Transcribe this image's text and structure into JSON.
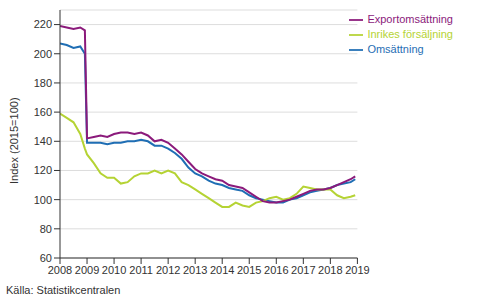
{
  "chart_data": {
    "type": "line",
    "y_label": "Index (2015=100)",
    "source": "Källa: Statistikcentralen",
    "x": [
      2008,
      2008.25,
      2008.5,
      2008.75,
      2008.92,
      2009,
      2009.25,
      2009.5,
      2009.75,
      2010,
      2010.25,
      2010.5,
      2010.75,
      2011,
      2011.25,
      2011.5,
      2011.75,
      2012,
      2012.25,
      2012.5,
      2012.75,
      2013,
      2013.25,
      2013.5,
      2013.75,
      2014,
      2014.25,
      2014.5,
      2014.75,
      2015,
      2015.25,
      2015.5,
      2015.75,
      2016,
      2016.25,
      2016.5,
      2016.75,
      2017,
      2017.25,
      2017.5,
      2017.75,
      2018,
      2018.25,
      2018.5,
      2018.75,
      2018.92
    ],
    "series": [
      {
        "name": "Omsättning",
        "color": "#1f6eb4",
        "values": [
          207,
          206,
          204,
          205,
          200,
          139,
          139,
          139,
          138,
          139,
          139,
          140,
          140,
          141,
          140,
          137,
          137,
          135,
          132,
          128,
          122,
          118,
          116,
          113,
          111,
          110,
          108,
          107,
          106,
          103,
          101,
          100,
          99,
          98,
          98,
          100,
          101,
          103,
          105,
          106,
          107,
          108,
          110,
          111,
          112,
          114
        ]
      },
      {
        "name": "Inrikes försäljning",
        "color": "#b5d334",
        "values": [
          159,
          156,
          153,
          145,
          135,
          131,
          125,
          118,
          115,
          115,
          111,
          112,
          116,
          118,
          118,
          120,
          118,
          120,
          118,
          112,
          110,
          107,
          104,
          101,
          98,
          95,
          95,
          98,
          96,
          95,
          98,
          99,
          101,
          102,
          100,
          101,
          104,
          109,
          108,
          107,
          107,
          107,
          103,
          101,
          102,
          103
        ]
      },
      {
        "name": "Exportomsättning",
        "color": "#8b1a7b",
        "values": [
          219,
          218,
          217,
          218,
          216,
          142,
          143,
          144,
          143,
          145,
          146,
          146,
          145,
          146,
          144,
          140,
          141,
          139,
          135,
          131,
          126,
          121,
          118,
          116,
          114,
          113,
          110,
          109,
          108,
          105,
          102,
          99,
          98,
          98,
          99,
          100,
          102,
          104,
          106,
          107,
          107,
          108,
          110,
          112,
          114,
          116
        ]
      }
    ],
    "xlim": [
      2008,
      2019
    ],
    "xticks": [
      2008,
      2009,
      2010,
      2011,
      2012,
      2013,
      2014,
      2015,
      2016,
      2017,
      2018,
      2019
    ],
    "ylim": [
      60,
      230
    ],
    "yticks": [
      60,
      80,
      100,
      120,
      140,
      160,
      180,
      200,
      220
    ],
    "grid": true,
    "legend": "top-right"
  }
}
